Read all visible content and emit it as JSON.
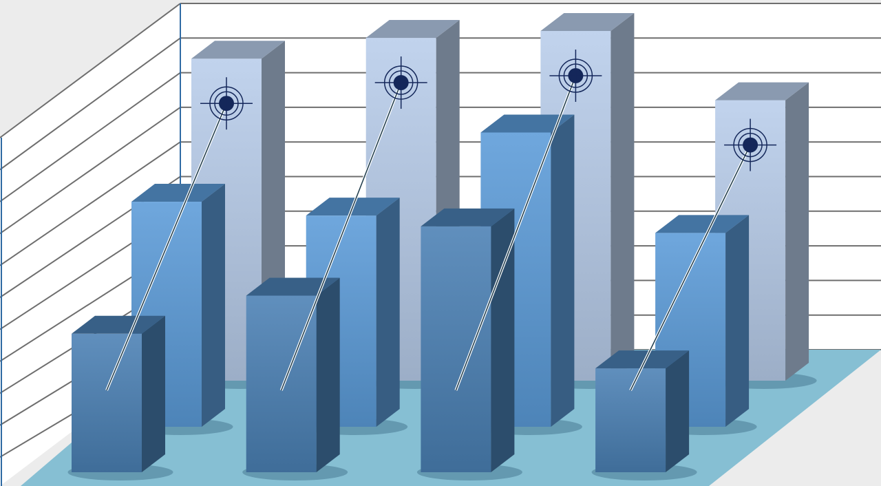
{
  "chart_data": {
    "type": "bar",
    "style": "3d-grouped",
    "categories": [
      "",
      "",
      "",
      ""
    ],
    "series": [
      {
        "values": [
          9.3,
          9.9,
          10.1,
          8.1
        ],
        "color": "#b8cdea",
        "markers": true
      },
      {
        "values": [
          6.5,
          6.1,
          8.5,
          5.6
        ],
        "color": "#5b9bd8"
      },
      {
        "values": [
          4.0,
          5.1,
          7.1,
          3.0
        ],
        "color": "#4a80b4"
      }
    ],
    "ylim": [
      0,
      10
    ],
    "grid": true,
    "colors": {
      "background": "#ececec",
      "wall": "#ffffff",
      "grid": "#6e6e6e",
      "floor": "#86bfd3",
      "marker": "#14275a"
    }
  }
}
